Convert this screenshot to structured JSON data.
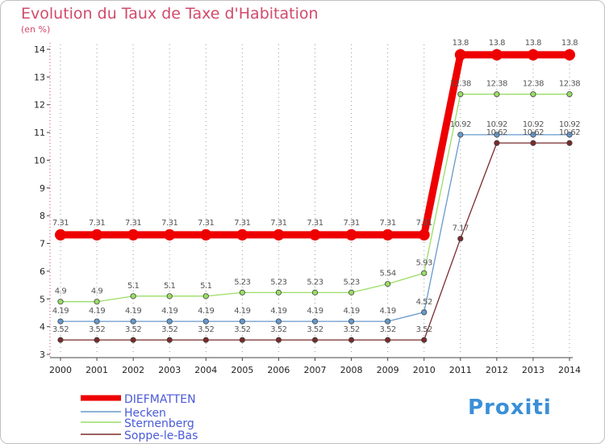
{
  "title": "Evolution du Taux de Taxe d'Habitation",
  "subtitle": "(en %)",
  "logo": "Proxiti",
  "chart_data": {
    "type": "line",
    "title": "Evolution du Taux de Taxe d'Habitation",
    "subtitle": "(en %)",
    "xlabel": "",
    "ylabel": "",
    "x": [
      2000,
      2001,
      2002,
      2003,
      2004,
      2005,
      2006,
      2007,
      2008,
      2009,
      2010,
      2011,
      2012,
      2013,
      2014
    ],
    "ylim": [
      3,
      14
    ],
    "yticks": [
      3,
      4,
      5,
      6,
      7,
      8,
      9,
      10,
      11,
      12,
      13,
      14
    ],
    "grid": "vertical-dotted",
    "legend": "bottom-left",
    "series": [
      {
        "name": "DIEFMATTEN",
        "color": "#ee0000",
        "values": [
          7.31,
          7.31,
          7.31,
          7.31,
          7.31,
          7.31,
          7.31,
          7.31,
          7.31,
          7.31,
          7.31,
          13.8,
          13.8,
          13.8,
          13.8
        ]
      },
      {
        "name": "Hecken",
        "color": "#6699cc",
        "values": [
          4.19,
          4.19,
          4.19,
          4.19,
          4.19,
          4.19,
          4.19,
          4.19,
          4.19,
          4.19,
          4.52,
          10.92,
          10.92,
          10.92,
          10.92
        ]
      },
      {
        "name": "Sternenberg",
        "color": "#99dd66",
        "values": [
          4.9,
          4.9,
          5.1,
          5.1,
          5.1,
          5.23,
          5.23,
          5.23,
          5.23,
          5.54,
          5.93,
          12.38,
          12.38,
          12.38,
          12.38
        ]
      },
      {
        "name": "Soppe-le-Bas",
        "color": "#7a2a2a",
        "values": [
          3.52,
          3.52,
          3.52,
          3.52,
          3.52,
          3.52,
          3.52,
          3.52,
          3.52,
          3.52,
          3.52,
          7.17,
          10.62,
          10.62,
          10.62
        ]
      }
    ]
  }
}
